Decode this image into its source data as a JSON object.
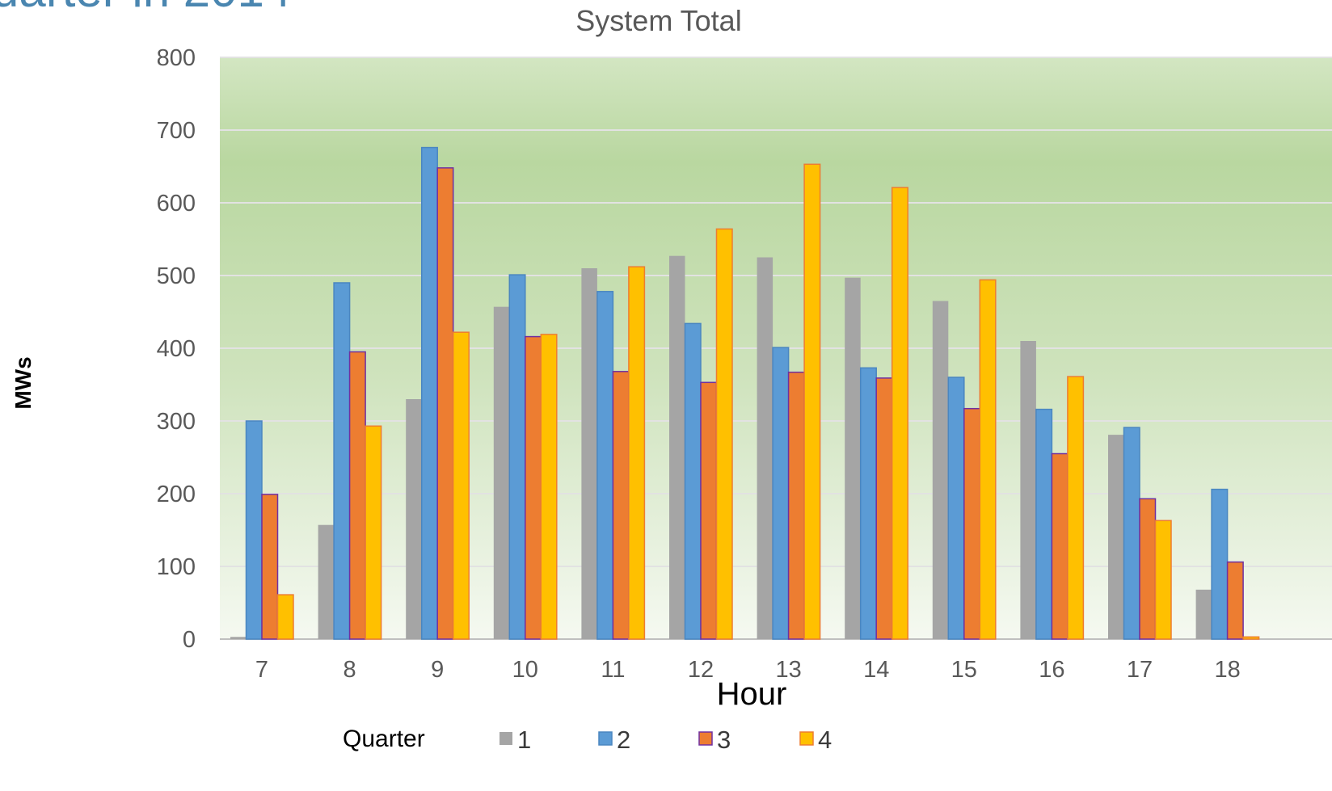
{
  "header_fragment": "uarter in 2014",
  "chart_data": {
    "type": "bar",
    "title": "System Total",
    "xlabel": "Hour",
    "ylabel": "MWs",
    "ylim": [
      0,
      800
    ],
    "yticks": [
      0,
      100,
      200,
      300,
      400,
      500,
      600,
      700,
      800
    ],
    "categories": [
      "7",
      "8",
      "9",
      "10",
      "11",
      "12",
      "13",
      "14",
      "15",
      "16",
      "17",
      "18"
    ],
    "legend_title": "Quarter",
    "legend_position": "bottom",
    "grid": true,
    "background": "green gradient",
    "series": [
      {
        "name": "1",
        "color": "#a5a5a5",
        "values": [
          3,
          157,
          330,
          457,
          510,
          527,
          525,
          497,
          465,
          410,
          281,
          68
        ]
      },
      {
        "name": "2",
        "color": "#5b9bd5",
        "values": [
          300,
          490,
          676,
          501,
          478,
          434,
          401,
          373,
          360,
          316,
          291,
          206
        ]
      },
      {
        "name": "3",
        "color": "#ed7d31",
        "values": [
          199,
          395,
          648,
          416,
          368,
          353,
          367,
          359,
          317,
          255,
          193,
          106
        ]
      },
      {
        "name": "4",
        "color": "#ffc000",
        "values": [
          61,
          293,
          422,
          419,
          512,
          564,
          653,
          621,
          494,
          361,
          163,
          3
        ]
      }
    ]
  }
}
